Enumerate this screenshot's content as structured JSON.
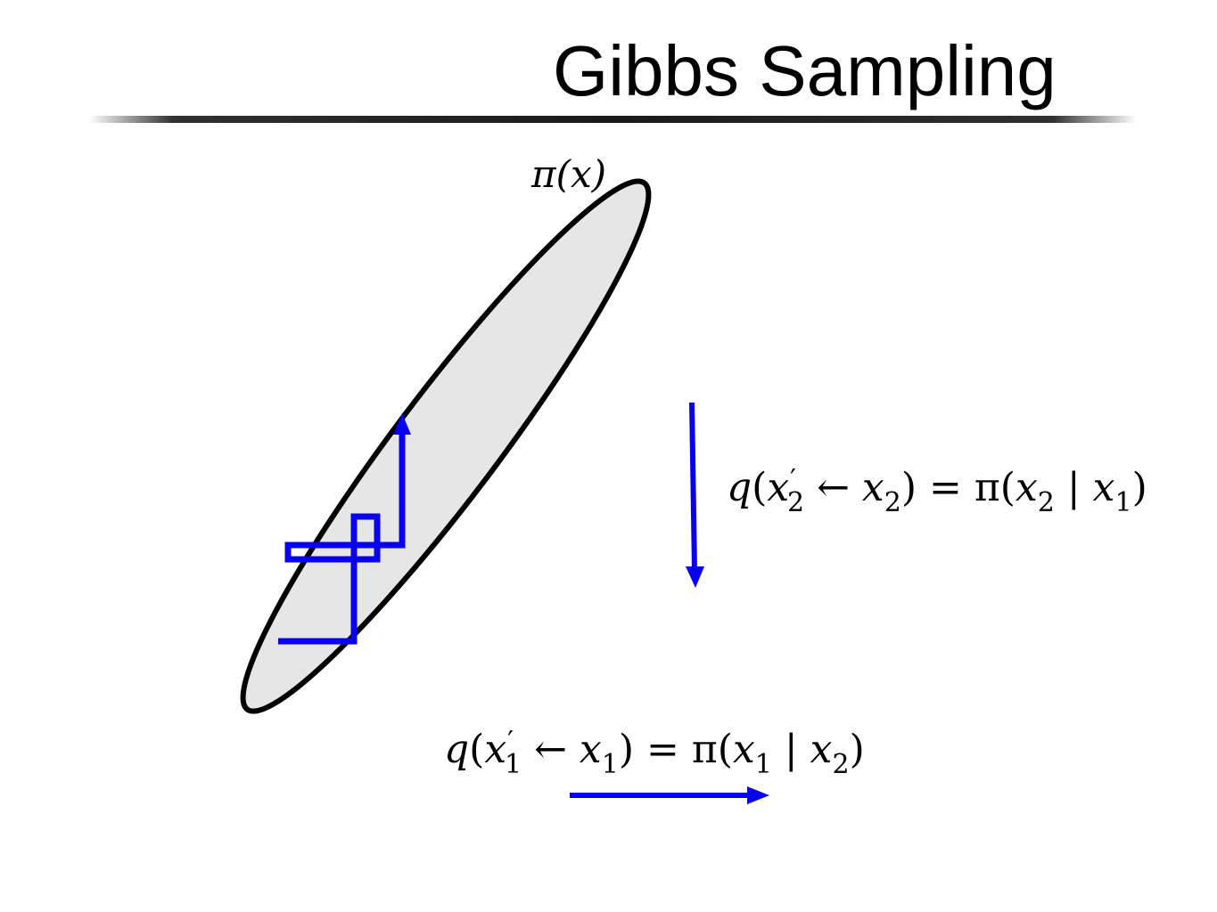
{
  "slide": {
    "title": "Gibbs Sampling"
  },
  "diagram": {
    "distribution_label": "π(x)",
    "vertical_update": {
      "q": "q",
      "open_paren": "(",
      "var_prime": "x",
      "prime_sub": "2",
      "prime_mark": "′",
      "arrow": " ← ",
      "var": "x",
      "var_sub": "2",
      "rhs": ") = π(",
      "cond_var": "x",
      "cond_var_sub": "2",
      "bar": " | ",
      "given_var": "x",
      "given_var_sub": "1",
      "close": ")"
    },
    "horizontal_update": {
      "q": "q",
      "open_paren": "(",
      "var_prime": "x",
      "prime_sub": "1",
      "prime_mark": "′",
      "arrow": " ← ",
      "var": "x",
      "var_sub": "1",
      "rhs": ") = π(",
      "cond_var": "x",
      "cond_var_sub": "1",
      "bar": " | ",
      "given_var": "x",
      "given_var_sub": "2",
      "close": ")"
    },
    "colors": {
      "path": "#0a00f0",
      "ellipse_fill": "#e6e6e6",
      "ellipse_stroke": "#000000"
    }
  }
}
